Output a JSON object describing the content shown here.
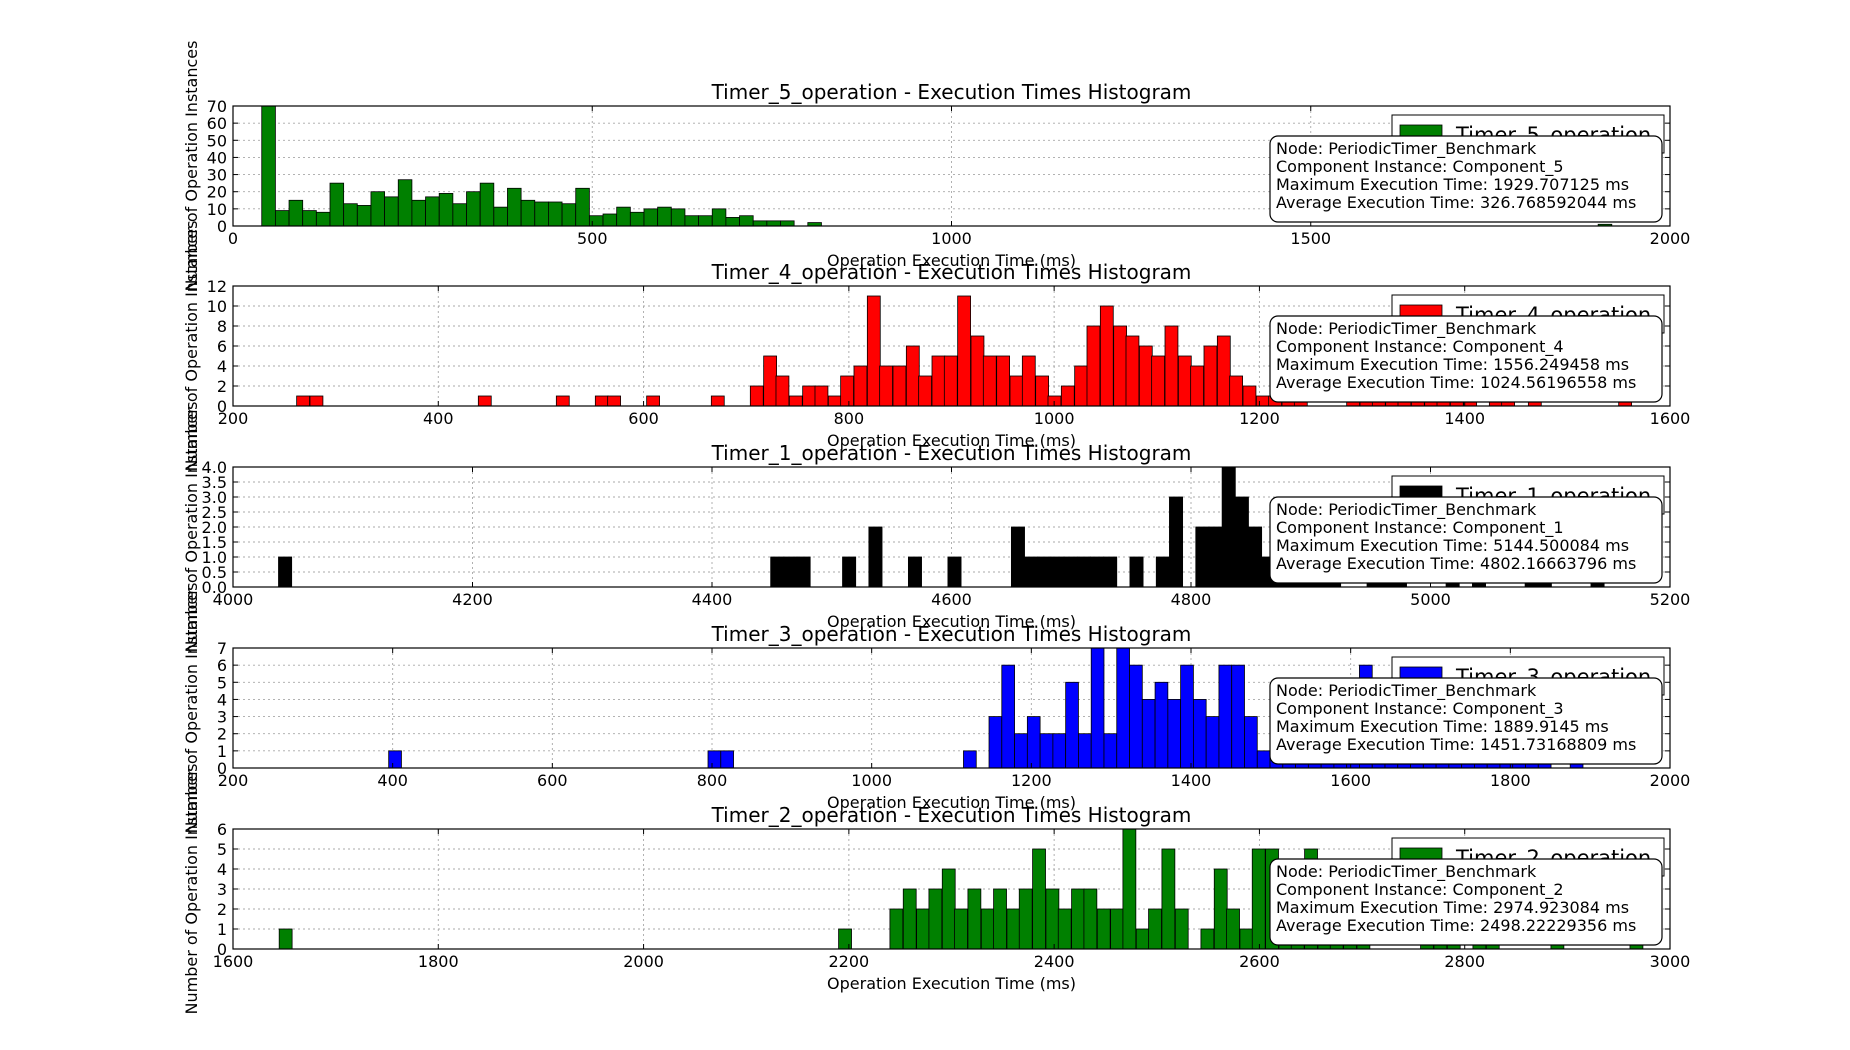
{
  "figure": {
    "background": "#ffffff",
    "grid": true
  },
  "chart_data": [
    {
      "type": "bar",
      "title": "Timer_5_operation - Execution Times Histogram",
      "xlabel": "Operation Execution Time (ms)",
      "ylabel": "Number of Operation Instances",
      "color": "#008000",
      "xlim": [
        0,
        2000
      ],
      "ylim": [
        0,
        70
      ],
      "xticks": [
        0,
        500,
        1000,
        1500,
        2000
      ],
      "yticks": [
        0,
        10,
        20,
        30,
        40,
        50,
        60,
        70
      ],
      "legend": {
        "label": "Timer_5_operation",
        "placement": "top-right"
      },
      "info": [
        "Node: PeriodicTimer_Benchmark",
        "Component Instance: Component_5",
        "Maximum Execution Time: 1929.707125 ms",
        "Average Execution Time: 326.768592044 ms"
      ],
      "bin_width": 19,
      "bins": [
        [
          40,
          70
        ],
        [
          59,
          9
        ],
        [
          78,
          15
        ],
        [
          97,
          9
        ],
        [
          116,
          8
        ],
        [
          135,
          25
        ],
        [
          154,
          13
        ],
        [
          173,
          12
        ],
        [
          192,
          20
        ],
        [
          211,
          17
        ],
        [
          230,
          27
        ],
        [
          249,
          15
        ],
        [
          268,
          17
        ],
        [
          287,
          19
        ],
        [
          306,
          13
        ],
        [
          325,
          20
        ],
        [
          344,
          25
        ],
        [
          363,
          11
        ],
        [
          382,
          22
        ],
        [
          401,
          15
        ],
        [
          420,
          14
        ],
        [
          439,
          14
        ],
        [
          458,
          13
        ],
        [
          477,
          22
        ],
        [
          496,
          6
        ],
        [
          515,
          7
        ],
        [
          534,
          11
        ],
        [
          553,
          8
        ],
        [
          572,
          10
        ],
        [
          591,
          11
        ],
        [
          610,
          10
        ],
        [
          629,
          6
        ],
        [
          648,
          6
        ],
        [
          667,
          10
        ],
        [
          686,
          5
        ],
        [
          705,
          6
        ],
        [
          724,
          3
        ],
        [
          743,
          3
        ],
        [
          762,
          3
        ],
        [
          800,
          2
        ],
        [
          1900,
          1
        ]
      ]
    },
    {
      "type": "bar",
      "title": "Timer_4_operation - Execution Times Histogram",
      "xlabel": "Operation Execution Time (ms)",
      "ylabel": "Number of Operation Instances",
      "color": "#ff0000",
      "xlim": [
        200,
        1600
      ],
      "ylim": [
        0,
        12
      ],
      "xticks": [
        200,
        400,
        600,
        800,
        1000,
        1200,
        1400,
        1600
      ],
      "yticks": [
        0,
        2,
        4,
        6,
        8,
        10,
        12
      ],
      "legend": {
        "label": "Timer_4_operation",
        "placement": "top-right"
      },
      "info": [
        "Node: PeriodicTimer_Benchmark",
        "Component Instance: Component_4",
        "Maximum Execution Time: 1556.249458 ms",
        "Average Execution Time: 1024.56196558 ms"
      ],
      "bin_width": 12.6,
      "bins": [
        [
          262,
          1
        ],
        [
          275,
          1
        ],
        [
          439,
          1
        ],
        [
          515,
          1
        ],
        [
          553,
          1
        ],
        [
          565,
          1
        ],
        [
          603,
          1
        ],
        [
          666,
          1
        ],
        [
          704,
          2
        ],
        [
          717,
          5
        ],
        [
          729,
          3
        ],
        [
          742,
          1
        ],
        [
          755,
          2
        ],
        [
          767,
          2
        ],
        [
          780,
          1
        ],
        [
          792,
          3
        ],
        [
          805,
          4
        ],
        [
          818,
          11
        ],
        [
          830,
          4
        ],
        [
          843,
          4
        ],
        [
          856,
          6
        ],
        [
          868,
          3
        ],
        [
          881,
          5
        ],
        [
          893,
          5
        ],
        [
          906,
          11
        ],
        [
          919,
          7
        ],
        [
          931,
          5
        ],
        [
          944,
          5
        ],
        [
          957,
          3
        ],
        [
          969,
          5
        ],
        [
          982,
          3
        ],
        [
          994,
          1
        ],
        [
          1007,
          2
        ],
        [
          1020,
          4
        ],
        [
          1032,
          8
        ],
        [
          1045,
          10
        ],
        [
          1058,
          8
        ],
        [
          1070,
          7
        ],
        [
          1083,
          6
        ],
        [
          1095,
          5
        ],
        [
          1108,
          8
        ],
        [
          1121,
          5
        ],
        [
          1133,
          4
        ],
        [
          1146,
          6
        ],
        [
          1159,
          7
        ],
        [
          1171,
          3
        ],
        [
          1184,
          2
        ],
        [
          1197,
          1
        ],
        [
          1209,
          1
        ],
        [
          1222,
          1
        ],
        [
          1234,
          1
        ],
        [
          1285,
          1
        ],
        [
          1298,
          1
        ],
        [
          1310,
          1
        ],
        [
          1323,
          1
        ],
        [
          1335,
          1
        ],
        [
          1348,
          1
        ],
        [
          1361,
          1
        ],
        [
          1373,
          1
        ],
        [
          1386,
          1
        ],
        [
          1399,
          1
        ],
        [
          1424,
          1
        ],
        [
          1436,
          1
        ],
        [
          1462,
          1
        ],
        [
          1550,
          1
        ]
      ]
    },
    {
      "type": "bar",
      "title": "Timer_1_operation - Execution Times Histogram",
      "xlabel": "Operation Execution Time (ms)",
      "ylabel": "Number of Operation Instances",
      "color": "#000000",
      "xlim": [
        4000,
        5200
      ],
      "ylim": [
        0,
        4
      ],
      "xticks": [
        4000,
        4200,
        4400,
        4600,
        4800,
        5000,
        5200
      ],
      "yticks": [
        0,
        0.5,
        1.0,
        1.5,
        2.0,
        2.5,
        3.0,
        3.5,
        4.0
      ],
      "ytick_labels": [
        "0.0",
        "0.5",
        "1.0",
        "1.5",
        "2.0",
        "2.5",
        "3.0",
        "3.5",
        "4.0"
      ],
      "legend": {
        "label": "Timer_1_operation",
        "placement": "top-right"
      },
      "info": [
        "Node: PeriodicTimer_Benchmark",
        "Component Instance: Component_1",
        "Maximum Execution Time: 5144.500084 ms",
        "Average Execution Time: 4802.16663796 ms"
      ],
      "bin_width": 11,
      "bins": [
        [
          4038,
          1
        ],
        [
          4449,
          1
        ],
        [
          4460,
          1
        ],
        [
          4471,
          1
        ],
        [
          4509,
          1
        ],
        [
          4531,
          2
        ],
        [
          4564,
          1
        ],
        [
          4597,
          1
        ],
        [
          4650,
          2
        ],
        [
          4661,
          1
        ],
        [
          4672,
          1
        ],
        [
          4683,
          1
        ],
        [
          4694,
          1
        ],
        [
          4705,
          1
        ],
        [
          4716,
          1
        ],
        [
          4727,
          1
        ],
        [
          4749,
          1
        ],
        [
          4771,
          1
        ],
        [
          4782,
          3
        ],
        [
          4804,
          2
        ],
        [
          4815,
          2
        ],
        [
          4826,
          4
        ],
        [
          4837,
          3
        ],
        [
          4848,
          2
        ],
        [
          4859,
          1
        ],
        [
          4870,
          1
        ],
        [
          4881,
          1
        ],
        [
          4892,
          1
        ],
        [
          4903,
          1
        ],
        [
          4914,
          1
        ],
        [
          4947,
          1
        ],
        [
          4958,
          1
        ],
        [
          4969,
          1
        ],
        [
          5013,
          1
        ],
        [
          5035,
          1
        ],
        [
          5079,
          1
        ],
        [
          5090,
          1
        ],
        [
          5134,
          1
        ]
      ]
    },
    {
      "type": "bar",
      "title": "Timer_3_operation - Execution Times Histogram",
      "xlabel": "Operation Execution Time (ms)",
      "ylabel": "Number of Operation Instances",
      "color": "#0000ff",
      "xlim": [
        200,
        2000
      ],
      "ylim": [
        0,
        7
      ],
      "xticks": [
        200,
        400,
        600,
        800,
        1000,
        1200,
        1400,
        1600,
        1800,
        2000
      ],
      "yticks": [
        0,
        1,
        2,
        3,
        4,
        5,
        6,
        7
      ],
      "legend": {
        "label": "Timer_3_operation",
        "placement": "top-right"
      },
      "info": [
        "Node: PeriodicTimer_Benchmark",
        "Component Instance: Component_3",
        "Maximum Execution Time: 1889.9145 ms",
        "Average Execution Time: 1451.73168809 ms"
      ],
      "bin_width": 16,
      "bins": [
        [
          395,
          1
        ],
        [
          795,
          1
        ],
        [
          811,
          1
        ],
        [
          1115,
          1
        ],
        [
          1147,
          3
        ],
        [
          1163,
          6
        ],
        [
          1179,
          2
        ],
        [
          1195,
          3
        ],
        [
          1211,
          2
        ],
        [
          1227,
          2
        ],
        [
          1243,
          5
        ],
        [
          1259,
          2
        ],
        [
          1275,
          7
        ],
        [
          1291,
          2
        ],
        [
          1307,
          7
        ],
        [
          1323,
          6
        ],
        [
          1339,
          4
        ],
        [
          1355,
          5
        ],
        [
          1371,
          4
        ],
        [
          1387,
          6
        ],
        [
          1403,
          4
        ],
        [
          1419,
          3
        ],
        [
          1435,
          6
        ],
        [
          1451,
          6
        ],
        [
          1467,
          3
        ],
        [
          1483,
          1
        ],
        [
          1499,
          1
        ],
        [
          1515,
          1
        ],
        [
          1531,
          1
        ],
        [
          1547,
          1
        ],
        [
          1563,
          1
        ],
        [
          1579,
          1
        ],
        [
          1595,
          1
        ],
        [
          1611,
          6
        ],
        [
          1627,
          1
        ],
        [
          1643,
          1
        ],
        [
          1659,
          1
        ],
        [
          1675,
          1
        ],
        [
          1691,
          1
        ],
        [
          1707,
          1
        ],
        [
          1723,
          1
        ],
        [
          1739,
          1
        ],
        [
          1755,
          1
        ],
        [
          1771,
          1
        ],
        [
          1787,
          1
        ],
        [
          1803,
          1
        ],
        [
          1819,
          1
        ],
        [
          1835,
          1
        ],
        [
          1875,
          1
        ]
      ]
    },
    {
      "type": "bar",
      "title": "Timer_2_operation - Execution Times Histogram",
      "xlabel": "Operation Execution Time (ms)",
      "ylabel": "Number of Operation Instances",
      "color": "#008000",
      "xlim": [
        1600,
        3000
      ],
      "ylim": [
        0,
        6
      ],
      "xticks": [
        1600,
        1800,
        2000,
        2200,
        2400,
        2600,
        2800,
        3000
      ],
      "yticks": [
        0,
        1,
        2,
        3,
        4,
        5,
        6
      ],
      "legend": {
        "label": "Timer_2_operation",
        "placement": "top-right"
      },
      "info": [
        "Node: PeriodicTimer_Benchmark",
        "Component Instance: Component_2",
        "Maximum Execution Time: 2974.923084 ms",
        "Average Execution Time: 2498.22229356 ms"
      ],
      "bin_width": 12.6,
      "bins": [
        [
          1645,
          1
        ],
        [
          2190,
          1
        ],
        [
          2240,
          2
        ],
        [
          2253,
          3
        ],
        [
          2266,
          2
        ],
        [
          2278,
          3
        ],
        [
          2291,
          4
        ],
        [
          2303,
          2
        ],
        [
          2316,
          3
        ],
        [
          2329,
          2
        ],
        [
          2341,
          3
        ],
        [
          2354,
          2
        ],
        [
          2366,
          3
        ],
        [
          2379,
          5
        ],
        [
          2392,
          3
        ],
        [
          2404,
          2
        ],
        [
          2417,
          3
        ],
        [
          2429,
          3
        ],
        [
          2442,
          2
        ],
        [
          2455,
          2
        ],
        [
          2467,
          6
        ],
        [
          2480,
          1
        ],
        [
          2492,
          2
        ],
        [
          2505,
          5
        ],
        [
          2518,
          2
        ],
        [
          2543,
          1
        ],
        [
          2556,
          4
        ],
        [
          2568,
          2
        ],
        [
          2581,
          1
        ],
        [
          2593,
          5
        ],
        [
          2606,
          5
        ],
        [
          2619,
          1
        ],
        [
          2631,
          1
        ],
        [
          2644,
          5
        ],
        [
          2657,
          1
        ],
        [
          2669,
          1
        ],
        [
          2682,
          1
        ],
        [
          2695,
          1
        ],
        [
          2757,
          1
        ],
        [
          2770,
          1
        ],
        [
          2783,
          1
        ],
        [
          2808,
          1
        ],
        [
          2821,
          1
        ],
        [
          2884,
          1
        ],
        [
          2961,
          1
        ]
      ]
    }
  ]
}
